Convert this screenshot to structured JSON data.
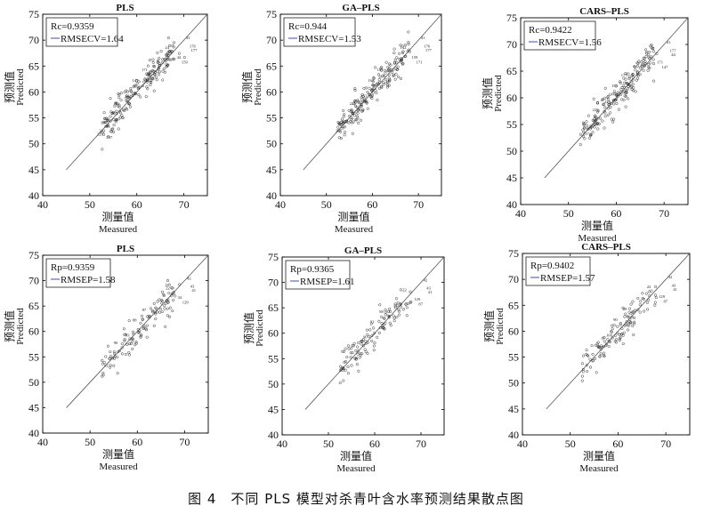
{
  "caption": "图 4　不同 PLS 模型对杀青叶含水率预测结果散点图",
  "chart_data": [
    {
      "type": "scatter",
      "title": "PLS",
      "stat1": "Rc=0.9359",
      "stat2": "RMSECV=1.64",
      "xlabel_cn": "测量值",
      "xlabel_en": "Measured",
      "ylabel_cn": "预测值",
      "ylabel_en": "Predicted",
      "xlim": [
        40,
        75
      ],
      "ylim": [
        40,
        75
      ],
      "xticks": [
        "40",
        "50",
        "60",
        "70"
      ],
      "yticks": [
        "40",
        "45",
        "50",
        "55",
        "60",
        "65",
        "70",
        "75"
      ],
      "point_labels": [
        "41",
        "176",
        "177",
        "24",
        "44",
        "159",
        "171",
        "147",
        "142",
        "163",
        "153",
        "223",
        "229",
        "237"
      ]
    },
    {
      "type": "scatter",
      "title": "GA–PLS",
      "stat1": "Rc=0.944",
      "stat2": "RMSECV=1.53",
      "xlabel_cn": "测量值",
      "xlabel_en": "Measured",
      "ylabel_cn": "预测值",
      "ylabel_en": "Predicted",
      "xlim": [
        40,
        75
      ],
      "ylim": [
        40,
        75
      ],
      "xticks": [
        "40",
        "50",
        "60",
        "70"
      ],
      "yticks": [
        "40",
        "45",
        "50",
        "55",
        "60",
        "65",
        "70",
        "75"
      ],
      "point_labels": [
        "41",
        "176",
        "177",
        "142",
        "159",
        "171",
        "147",
        "163",
        "153",
        "223",
        "229",
        "237"
      ]
    },
    {
      "type": "scatter",
      "title": "CARS–PLS",
      "stat1": "Rc=0.9422",
      "stat2": "RMSECV=1.56",
      "xlabel_cn": "测量值",
      "xlabel_en": "Measured",
      "ylabel_cn": "预测值",
      "ylabel_en": "Predicted",
      "xlim": [
        40,
        75
      ],
      "ylim": [
        40,
        75
      ],
      "xticks": [
        "40",
        "50",
        "60",
        "70"
      ],
      "yticks": [
        "40",
        "45",
        "50",
        "55",
        "60",
        "65",
        "70",
        "75"
      ],
      "point_labels": [
        "41",
        "177",
        "44",
        "159",
        "171",
        "147",
        "173",
        "153",
        "223",
        "229",
        "237"
      ]
    },
    {
      "type": "scatter",
      "title": "PLS",
      "stat1": "Rp=0.9359",
      "stat2": "RMSEP=1.58",
      "xlabel_cn": "测量值",
      "xlabel_en": "Measured",
      "ylabel_cn": "预测值",
      "ylabel_en": "Predicted",
      "xlim": [
        40,
        75
      ],
      "ylim": [
        40,
        75
      ],
      "xticks": [
        "40",
        "50",
        "60",
        "70"
      ],
      "yticks": [
        "40",
        "45",
        "50",
        "55",
        "60",
        "65",
        "70",
        "75"
      ],
      "point_labels": [
        "42",
        "43",
        "41",
        "22",
        "34",
        "129",
        "87",
        "88",
        "93",
        "90",
        "92"
      ]
    },
    {
      "type": "scatter",
      "title": "GA–PLS",
      "stat1": "Rp=0.9365",
      "stat2": "RMSEP=1.61",
      "xlabel_cn": "测量值",
      "xlabel_en": "Measured",
      "ylabel_cn": "预测值",
      "ylabel_en": "Predicted",
      "xlim": [
        40,
        75
      ],
      "ylim": [
        40,
        75
      ],
      "xticks": [
        "40",
        "50",
        "60",
        "70"
      ],
      "yticks": [
        "40",
        "45",
        "50",
        "55",
        "60",
        "65",
        "70",
        "75"
      ],
      "point_labels": [
        "42",
        "43",
        "41",
        "22",
        "129",
        "87",
        "88",
        "93",
        "90"
      ]
    },
    {
      "type": "scatter",
      "title": "CARS–PLS",
      "stat1": "Rp=0.9402",
      "stat2": "RMSEP=1.57",
      "xlabel_cn": "测量值",
      "xlabel_en": "Measured",
      "ylabel_cn": "预测值",
      "ylabel_en": "Predicted",
      "xlim": [
        40,
        75
      ],
      "ylim": [
        40,
        75
      ],
      "xticks": [
        "40",
        "50",
        "60",
        "70"
      ],
      "yticks": [
        "40",
        "45",
        "50",
        "55",
        "60",
        "65",
        "70",
        "75"
      ],
      "point_labels": [
        "42",
        "43",
        "41",
        "22",
        "129",
        "87",
        "88",
        "90",
        "100"
      ]
    }
  ]
}
